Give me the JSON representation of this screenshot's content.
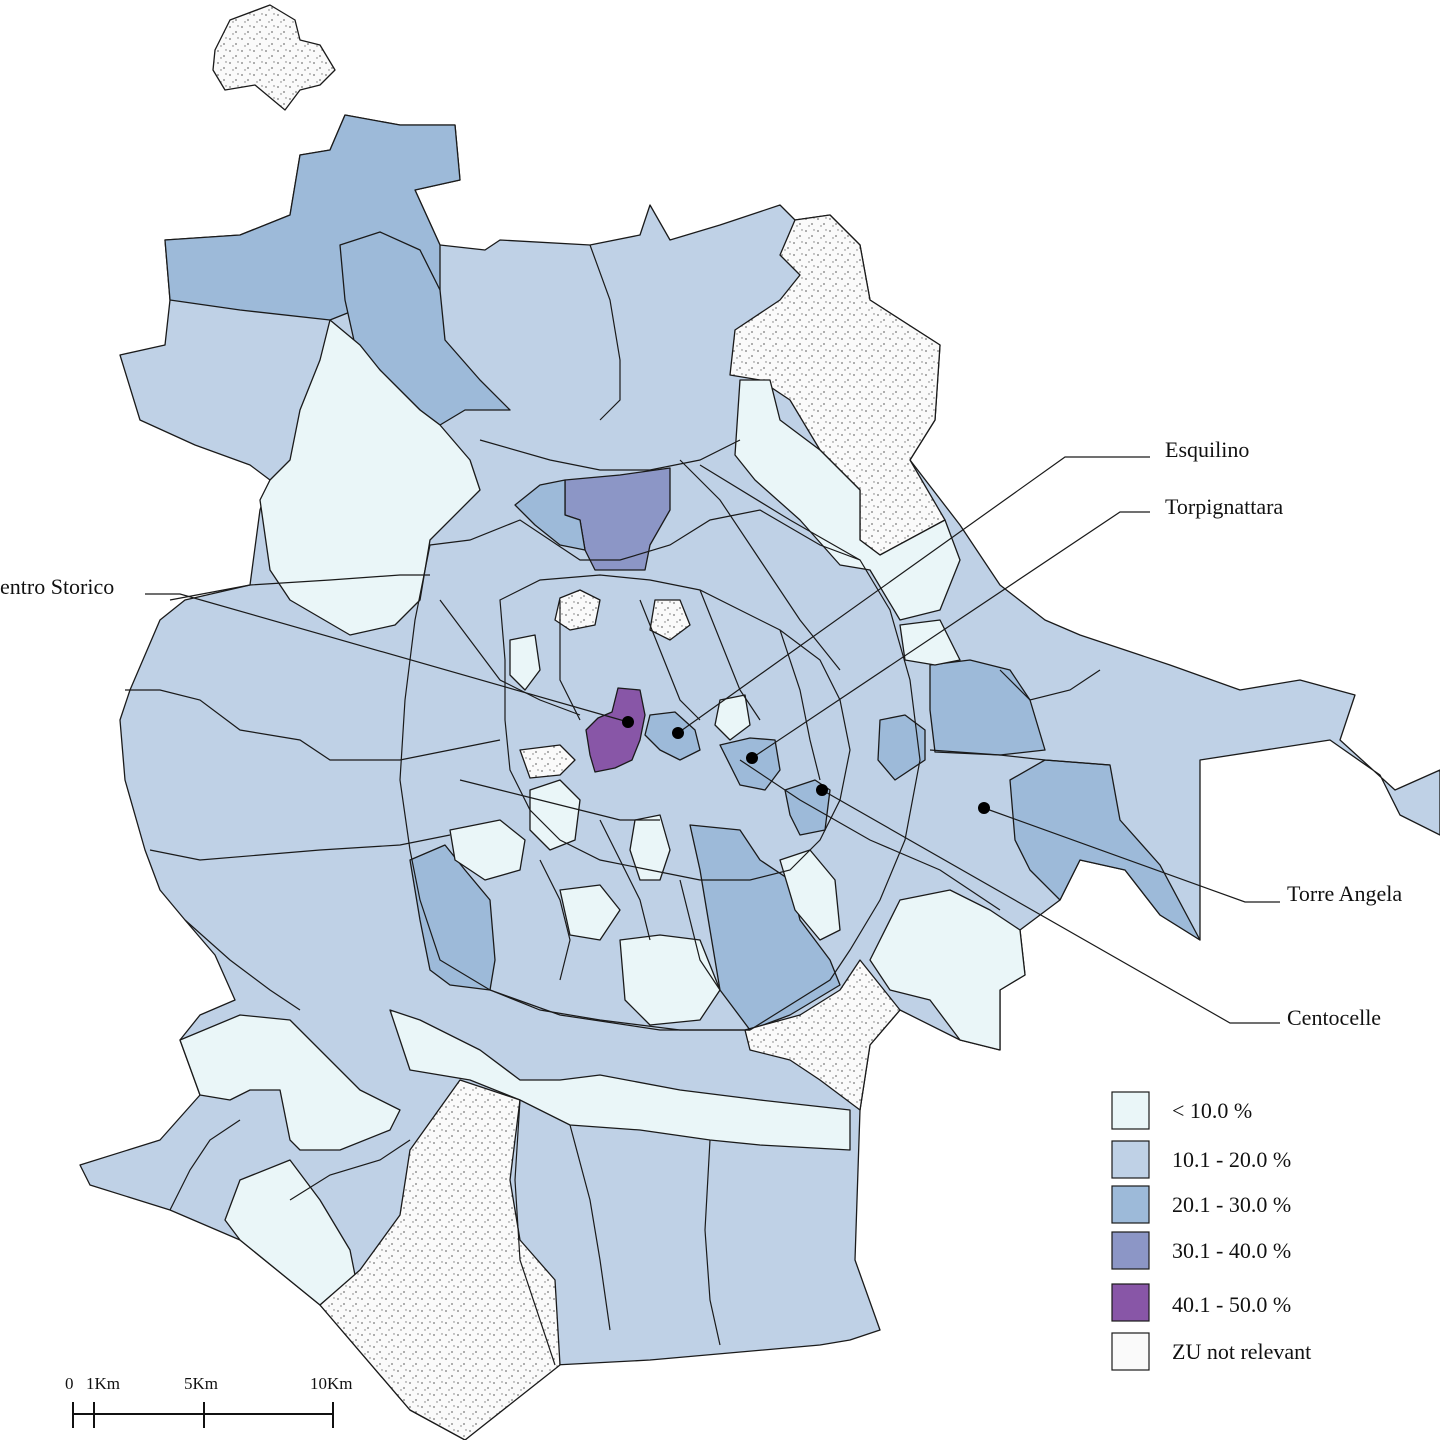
{
  "colors": {
    "lt10": "#eaf6f8",
    "c10_20": "#bfd1e6",
    "c20_30": "#9dbad9",
    "c30_40": "#8c96c6",
    "c40_50": "#8856a7",
    "not_relevant": "#fafafa",
    "stipple": "#777777"
  },
  "places": {
    "esquilino": "Esquilino",
    "torpignattara": "Torpignattara",
    "centro_storico": "entro Storico",
    "torre_angela": "Torre Angela",
    "centocelle": "Centocelle"
  },
  "legend": {
    "items": [
      {
        "label": "< 10.0 %",
        "color_key": "lt10"
      },
      {
        "label": "10.1 - 20.0 %",
        "color_key": "c10_20"
      },
      {
        "label": "20.1 - 30.0 %",
        "color_key": "c20_30"
      },
      {
        "label": "30.1 - 40.0 %",
        "color_key": "c30_40"
      },
      {
        "label": "40.1 - 50.0 %",
        "color_key": "c40_50"
      },
      {
        "label": "ZU not relevant",
        "color_key": "not_relevant"
      }
    ]
  },
  "scale_bar": {
    "t0": "0",
    "t1": "1Km",
    "t5": "5Km",
    "t10": "10Km"
  }
}
